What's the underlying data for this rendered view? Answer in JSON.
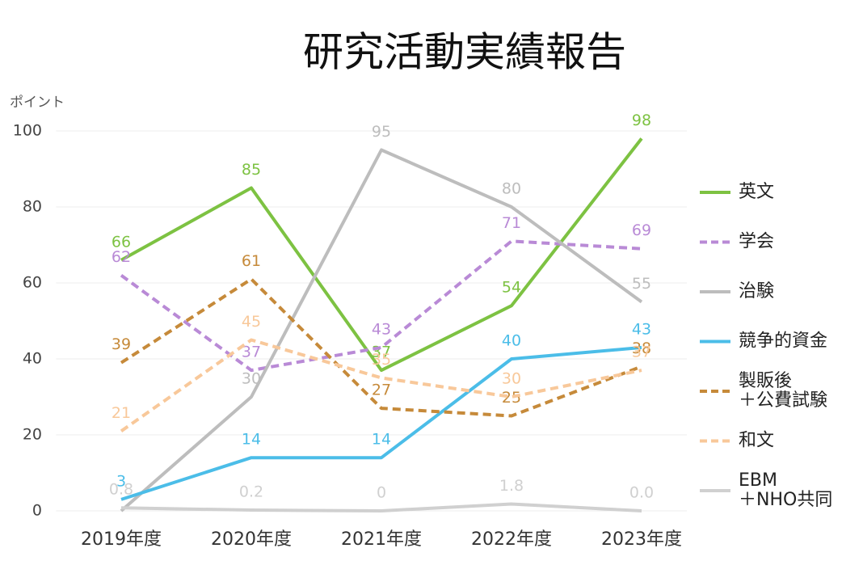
{
  "chart_data": {
    "type": "line",
    "title": "研究活動実績報告",
    "y_label": "ポイント",
    "categories": [
      "2019年度",
      "2020年度",
      "2021年度",
      "2022年度",
      "2023年度"
    ],
    "ylim": [
      0,
      100
    ],
    "yticks": [
      0,
      20,
      40,
      60,
      80,
      100
    ],
    "grid": true,
    "legend": "right",
    "series": [
      {
        "name": "英文",
        "color": "#7dc242",
        "style": "solid",
        "values": [
          66,
          85,
          37,
          54,
          98
        ]
      },
      {
        "name": "学会",
        "color": "#b98ad6",
        "style": "dashed",
        "values": [
          62,
          37,
          43,
          71,
          69
        ]
      },
      {
        "name": "治験",
        "color": "#bdbdbd",
        "style": "solid",
        "values": [
          0,
          30,
          95,
          80,
          55
        ],
        "value_labels": [
          null,
          "30",
          "95",
          "80",
          "55"
        ]
      },
      {
        "name": "競争的資金",
        "color": "#4bbde8",
        "style": "solid",
        "values": [
          3,
          14,
          14,
          40,
          43
        ]
      },
      {
        "name": "製販後\n＋公費試験",
        "color": "#c68a3a",
        "style": "dashed",
        "values": [
          39,
          61,
          27,
          25,
          38
        ]
      },
      {
        "name": "和文",
        "color": "#f8c89a",
        "style": "dashed",
        "values": [
          21,
          45,
          35,
          30,
          37
        ]
      },
      {
        "name": "EBM\n＋NHO共同",
        "color": "#d0d0d0",
        "style": "solid",
        "values": [
          0.8,
          0.2,
          0,
          1.8,
          0
        ],
        "value_labels": [
          "0.8",
          "0.2",
          "0",
          "1.8",
          "0.0"
        ]
      }
    ]
  }
}
